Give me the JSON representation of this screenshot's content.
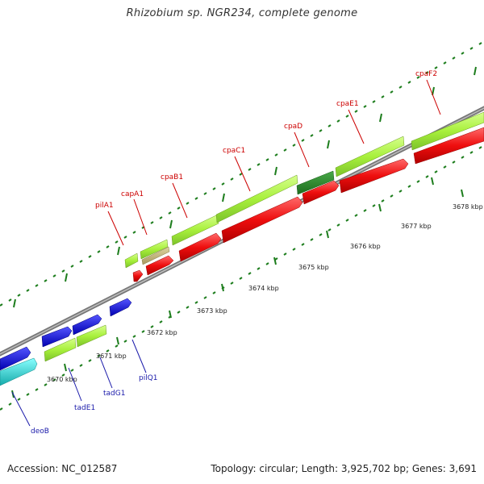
{
  "title": "Rhizobium sp. NGR234, complete genome",
  "footer": {
    "accession": "Accession: NC_012587",
    "summary": "Topology: circular; Length: 3,925,702 bp; Genes: 3,691"
  },
  "colors": {
    "backbone": "#888888",
    "tick": "#1d7d1d",
    "cds_green": "#a8f03c",
    "cds_red": "#ee0e0e",
    "highlight_green": "#2c8c2c",
    "cds_olive": "#bfb470",
    "cds_blue": "#1111dd",
    "cds_cyan": "#22cccc",
    "label_red": "#cc0000",
    "label_blue": "#1a1aaa"
  },
  "scale_labels": [
    "3670 kbp",
    "3671 kbp",
    "3672 kbp",
    "3673 kbp",
    "3674 kbp",
    "3675 kbp",
    "3676 kbp",
    "3677 kbp",
    "3678 kbp"
  ],
  "genes_upper": [
    "pilA1",
    "capA1",
    "cpaB1",
    "cpaC1",
    "cpaD",
    "cpaE1",
    "cpaF2"
  ],
  "genes_lower": [
    "deoB",
    "tadE1",
    "tadG1",
    "pilQ1"
  ]
}
